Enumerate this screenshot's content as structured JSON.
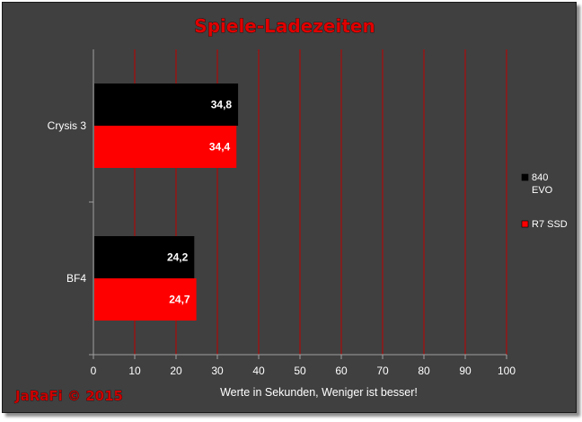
{
  "chart_data": {
    "type": "bar",
    "orientation": "horizontal",
    "title": "Spiele-Ladezeiten",
    "xlabel": "Werte in Sekunden, Weniger ist besser!",
    "ylabel": "",
    "xlim": [
      0,
      100
    ],
    "x_ticks": [
      "0",
      "10",
      "20",
      "30",
      "40",
      "50",
      "60",
      "70",
      "80",
      "90",
      "100"
    ],
    "grid": "vertical",
    "legend_position": "right",
    "categories": [
      "Crysis 3",
      "BF4"
    ],
    "series": [
      {
        "name": "840 EVO",
        "color": "#000000",
        "values": [
          34.8,
          24.2
        ],
        "labels": [
          "34,8",
          "24,2"
        ]
      },
      {
        "name": "R7 SSD",
        "color": "#ff0000",
        "values": [
          34.4,
          24.7
        ],
        "labels": [
          "34,4",
          "24,7"
        ]
      }
    ]
  },
  "credit": "JaRaFi  © 2015",
  "colors": {
    "background": "#404040",
    "grid": "#c00000",
    "axis": "#a0a0a0"
  }
}
